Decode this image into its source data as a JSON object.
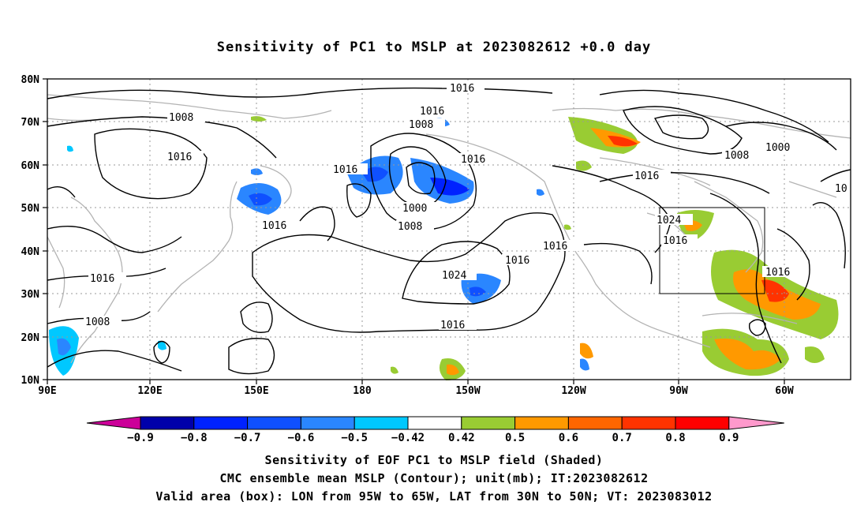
{
  "title": "Sensitivity of PC1 to MSLP at 2023082612 +0.0 day",
  "lat_ticks": [
    "80N",
    "70N",
    "60N",
    "50N",
    "40N",
    "30N",
    "20N",
    "10N"
  ],
  "lon_ticks": [
    "90E",
    "120E",
    "150E",
    "180",
    "150W",
    "120W",
    "90W",
    "60W"
  ],
  "contour_labels": [
    "1016",
    "1016",
    "1008",
    "1008",
    "1016",
    "1016",
    "1016",
    "1016",
    "1000",
    "1008",
    "1024",
    "1016",
    "1016",
    "1016",
    "1016",
    "1024",
    "1016",
    "1016",
    "1000",
    "1008",
    "1016",
    "1008",
    "1000",
    "10"
  ],
  "colorbar": {
    "labels": [
      "-0.9",
      "-0.8",
      "-0.7",
      "-0.6",
      "-0.5",
      "-0.42",
      "0.42",
      "0.5",
      "0.6",
      "0.7",
      "0.8",
      "0.9"
    ],
    "colors": [
      "#cc0099",
      "#0000aa",
      "#0022ff",
      "#0f50ff",
      "#2a86ff",
      "#00c8ff",
      "#ffffff",
      "#99cc33",
      "#ff9900",
      "#ff6600",
      "#ff3300",
      "#ff0000",
      "#ff99cc"
    ]
  },
  "captions": [
    "Sensitivity of EOF PC1 to MSLP field (Shaded)",
    "CMC ensemble mean MSLP (Contour); unit(mb); IT:2023082612",
    "Valid area (box): LON from 95W to 65W, LAT from 30N to 50N; VT: 2023083012"
  ]
}
